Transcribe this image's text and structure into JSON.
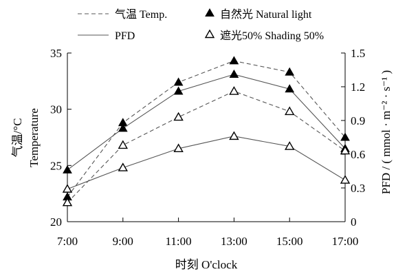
{
  "chart_data": {
    "type": "line",
    "x": [
      "7:00",
      "9:00",
      "11:00",
      "13:00",
      "15:00",
      "17:00"
    ],
    "xlabel": "时刻 O'clock",
    "ylabel_left": [
      "气温/°C",
      "Temperature"
    ],
    "ylabel_right": "PFD / ( mmol · m⁻² · s⁻¹ )",
    "ylim_left": [
      20,
      35
    ],
    "yticks_left": [
      "20",
      "25",
      "30",
      "35"
    ],
    "ylim_right": [
      0,
      1.5
    ],
    "yticks_right": [
      "0",
      "0.3",
      "0.6",
      "0.9",
      "1.2",
      "1.5"
    ],
    "grid": false,
    "legend": {
      "placement": "top",
      "line_styles": [
        {
          "label": "气温 Temp.",
          "style": "dashed"
        },
        {
          "label": "PFD",
          "style": "solid"
        }
      ],
      "markers": [
        {
          "label": "自然光 Natural light",
          "marker": "filled-triangle"
        },
        {
          "label": "遮光50%  Shading 50%",
          "marker": "open-triangle"
        }
      ]
    },
    "series": [
      {
        "name": "气温 Temp. 自然光 Natural light",
        "axis": "left",
        "line": "dashed",
        "marker": "filled-triangle",
        "values": [
          22.2,
          28.8,
          32.4,
          34.3,
          33.3,
          27.5
        ]
      },
      {
        "name": "PFD 自然光 Natural light",
        "axis": "right",
        "line": "solid",
        "marker": "filled-triangle",
        "values": [
          0.46,
          0.83,
          1.16,
          1.31,
          1.18,
          0.65
        ]
      },
      {
        "name": "气温 Temp. 遮光50%  Shading 50%",
        "axis": "left",
        "line": "dashed",
        "marker": "open-triangle",
        "values": [
          21.7,
          26.8,
          29.3,
          31.6,
          29.8,
          26.3
        ]
      },
      {
        "name": "PFD 遮光50%  Shading 50%",
        "axis": "right",
        "line": "solid",
        "marker": "open-triangle",
        "values": [
          0.29,
          0.48,
          0.65,
          0.76,
          0.67,
          0.37
        ]
      }
    ]
  }
}
